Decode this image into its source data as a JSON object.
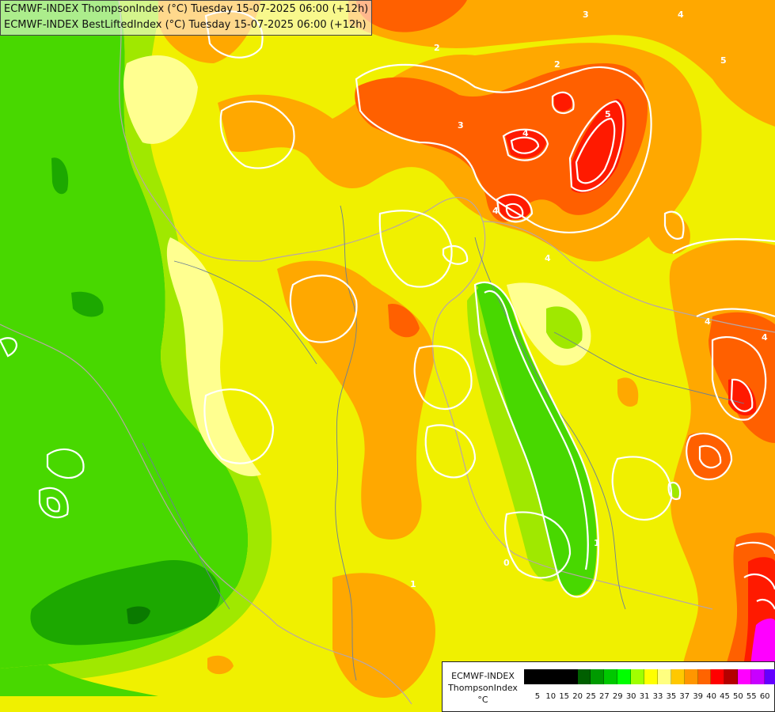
{
  "header": {
    "line1": "ECMWF-INDEX ThompsonIndex (°C) Tuesday 15-07-2025 06:00 (+12h)",
    "line2": "ECMWF-INDEX BestLiftedIndex (°C) Tuesday 15-07-2025 06:00 (+12h)"
  },
  "legend": {
    "title_line1": "ECMWF-INDEX",
    "title_line2": "ThompsonIndex",
    "unit": "°C",
    "ticks": [
      "5",
      "10",
      "15",
      "20",
      "25",
      "27",
      "29",
      "30",
      "31",
      "33",
      "35",
      "37",
      "39",
      "40",
      "45",
      "50",
      "55",
      "60"
    ],
    "colors": [
      "#000000",
      "#000000",
      "#000000",
      "#000000",
      "#005f00",
      "#009a00",
      "#00c800",
      "#00ff00",
      "#a0ff00",
      "#ffff00",
      "#ffff80",
      "#ffc800",
      "#ff9600",
      "#ff6400",
      "#ff0000",
      "#b40000",
      "#ff00ff",
      "#c800ff",
      "#6400ff"
    ]
  },
  "map": {
    "contour_labels": [
      "3",
      "2",
      "4",
      "3",
      "4",
      "5",
      "4",
      "4",
      "5",
      "4",
      "1",
      "2",
      "1",
      "0",
      "4"
    ]
  }
}
